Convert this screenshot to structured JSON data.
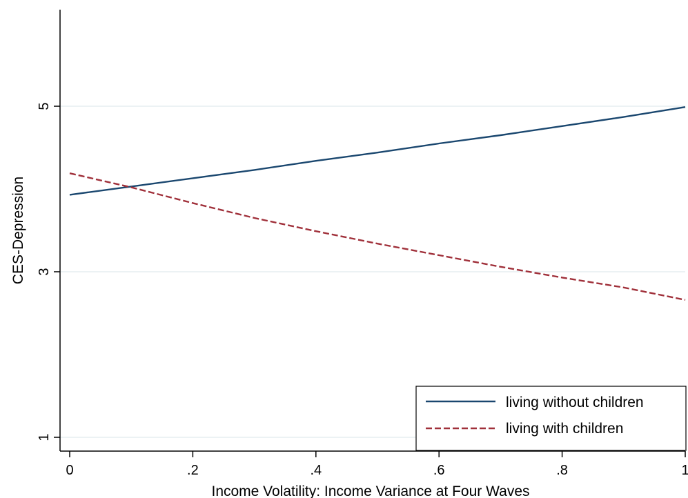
{
  "chart_data": {
    "type": "line",
    "xlabel": "Income Volatility: Income Variance at Four Waves",
    "ylabel": "CES-Depression",
    "xlim": [
      0,
      1
    ],
    "ylim": [
      1,
      6
    ],
    "xticks": [
      {
        "value": 0,
        "label": "0"
      },
      {
        "value": 0.2,
        "label": ".2"
      },
      {
        "value": 0.4,
        "label": ".4"
      },
      {
        "value": 0.6,
        "label": ".6"
      },
      {
        "value": 0.8,
        "label": ".8"
      },
      {
        "value": 1,
        "label": "1"
      }
    ],
    "yticks": [
      {
        "value": 1,
        "label": "1"
      },
      {
        "value": 3,
        "label": "3"
      },
      {
        "value": 5,
        "label": "5"
      }
    ],
    "grid": true,
    "legend_position": "bottom-right",
    "series": [
      {
        "name": "living without children",
        "color": "#1a476f",
        "style": "solid",
        "x": [
          0,
          0.1,
          0.2,
          0.3,
          0.4,
          0.5,
          0.6,
          0.7,
          0.8,
          0.9,
          1
        ],
        "y": [
          3.93,
          4.03,
          4.13,
          4.23,
          4.34,
          4.44,
          4.55,
          4.65,
          4.76,
          4.87,
          4.99
        ]
      },
      {
        "name": "living with children",
        "color": "#a0303a",
        "style": "dashed",
        "x": [
          0,
          0.1,
          0.2,
          0.3,
          0.4,
          0.5,
          0.6,
          0.7,
          0.8,
          0.9,
          1
        ],
        "y": [
          4.19,
          4.02,
          3.83,
          3.65,
          3.49,
          3.34,
          3.2,
          3.06,
          2.93,
          2.81,
          2.66
        ]
      }
    ]
  }
}
